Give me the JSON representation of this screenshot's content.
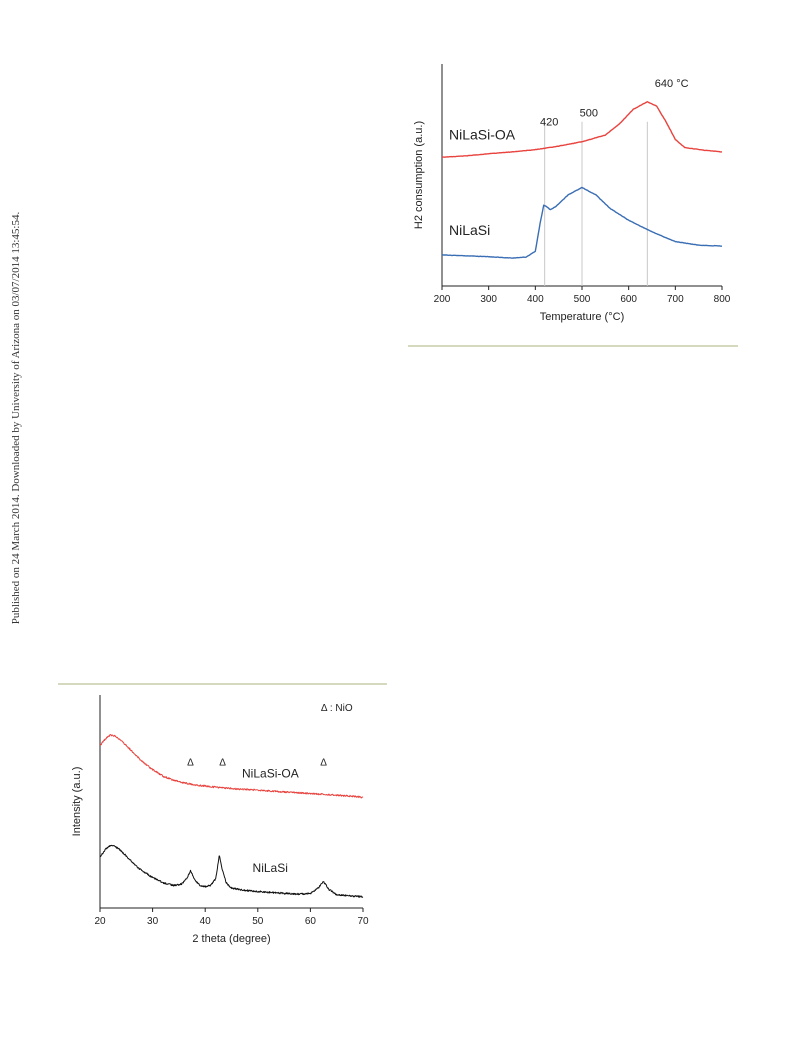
{
  "margin_note": "Published on 24 March 2014. Downloaded by University of Arizona on 03/07/2014 13:45:54.",
  "colors": {
    "red": "#e8433e",
    "blue": "#3a6eb4",
    "black": "#111111",
    "ref_line": "#c8c8c8",
    "rule": "#d5d9bd"
  },
  "chart_data": [
    {
      "type": "line",
      "xlabel": "Temperature (°C)",
      "ylabel": "H2 consumption (a.u.)",
      "xlim": [
        200,
        800
      ],
      "xticks": [
        "200",
        "300",
        "400",
        "500",
        "600",
        "700",
        "800"
      ],
      "y_ticks_shown": false,
      "series": [
        {
          "name": "NiLaSi-OA",
          "color": "#e8433e",
          "x": [
            200,
            250,
            300,
            350,
            400,
            450,
            500,
            550,
            580,
            610,
            640,
            660,
            680,
            700,
            720,
            760,
            800
          ],
          "y": [
            2.9,
            2.93,
            2.98,
            3.02,
            3.07,
            3.15,
            3.25,
            3.4,
            3.65,
            3.98,
            4.15,
            4.05,
            3.7,
            3.3,
            3.12,
            3.06,
            3.02
          ]
        },
        {
          "name": "NiLaSi",
          "color": "#3a6eb4",
          "x": [
            200,
            250,
            300,
            350,
            380,
            400,
            410,
            418,
            425,
            432,
            445,
            470,
            500,
            530,
            560,
            600,
            650,
            700,
            750,
            800
          ],
          "y": [
            0.7,
            0.68,
            0.66,
            0.63,
            0.65,
            0.78,
            1.4,
            1.82,
            1.78,
            1.72,
            1.8,
            2.05,
            2.22,
            2.05,
            1.75,
            1.48,
            1.22,
            1.0,
            0.92,
            0.9
          ]
        }
      ],
      "reference_lines": [
        420,
        500,
        640
      ],
      "annotations": [
        {
          "text": "NiLaSi-OA",
          "x": 215,
          "y": 3.3
        },
        {
          "text": "NiLaSi",
          "x": 215,
          "y": 1.15
        },
        {
          "text": "420",
          "x": 410,
          "y": 3.62
        },
        {
          "text": "500",
          "x": 495,
          "y": 3.82
        },
        {
          "text": "640 °C",
          "x": 656,
          "y": 4.48
        }
      ]
    },
    {
      "type": "line",
      "xlabel": "2 theta (degree)",
      "ylabel": "Intensity (a.u.)",
      "xlim": [
        20,
        70
      ],
      "xticks": [
        "20",
        "30",
        "40",
        "50",
        "60",
        "70"
      ],
      "y_ticks_shown": false,
      "series": [
        {
          "name": "NiLaSi-OA",
          "color": "#e8433e",
          "x": [
            20,
            21,
            22,
            23,
            24,
            25,
            26,
            27,
            28,
            30,
            32,
            34,
            36,
            38,
            40,
            44,
            48,
            52,
            56,
            60,
            64,
            68,
            70
          ],
          "y": [
            6.1,
            6.35,
            6.5,
            6.45,
            6.3,
            6.1,
            5.9,
            5.7,
            5.5,
            5.2,
            4.95,
            4.8,
            4.7,
            4.62,
            4.58,
            4.5,
            4.45,
            4.4,
            4.35,
            4.3,
            4.25,
            4.2,
            4.15
          ]
        },
        {
          "name": "NiLaSi",
          "color": "#111111",
          "x": [
            20,
            21,
            22,
            23,
            24,
            25,
            26,
            27,
            28,
            30,
            32,
            34,
            35.5,
            36.5,
            37.2,
            38,
            39,
            40,
            41,
            42,
            42.7,
            43.3,
            44,
            45,
            47,
            50,
            55,
            58,
            60,
            61.5,
            62.5,
            63.5,
            65,
            68,
            70
          ],
          "y": [
            1.9,
            2.2,
            2.35,
            2.3,
            2.15,
            1.95,
            1.75,
            1.55,
            1.4,
            1.15,
            0.95,
            0.85,
            0.9,
            1.1,
            1.4,
            1.05,
            0.85,
            0.8,
            0.85,
            1.1,
            2.0,
            1.4,
            0.95,
            0.75,
            0.68,
            0.62,
            0.55,
            0.52,
            0.55,
            0.75,
            1.0,
            0.7,
            0.5,
            0.45,
            0.42
          ]
        }
      ],
      "markers": [
        {
          "symbol": "Δ",
          "x": 37.2
        },
        {
          "symbol": "Δ",
          "x": 43.3
        },
        {
          "symbol": "Δ",
          "x": 62.5
        }
      ],
      "legend_note": "Δ : NiO",
      "annotations": [
        {
          "text": "NiLaSi-OA",
          "x": 47,
          "y": 4.9
        },
        {
          "text": "NiLaSi",
          "x": 49,
          "y": 1.35
        }
      ]
    }
  ]
}
